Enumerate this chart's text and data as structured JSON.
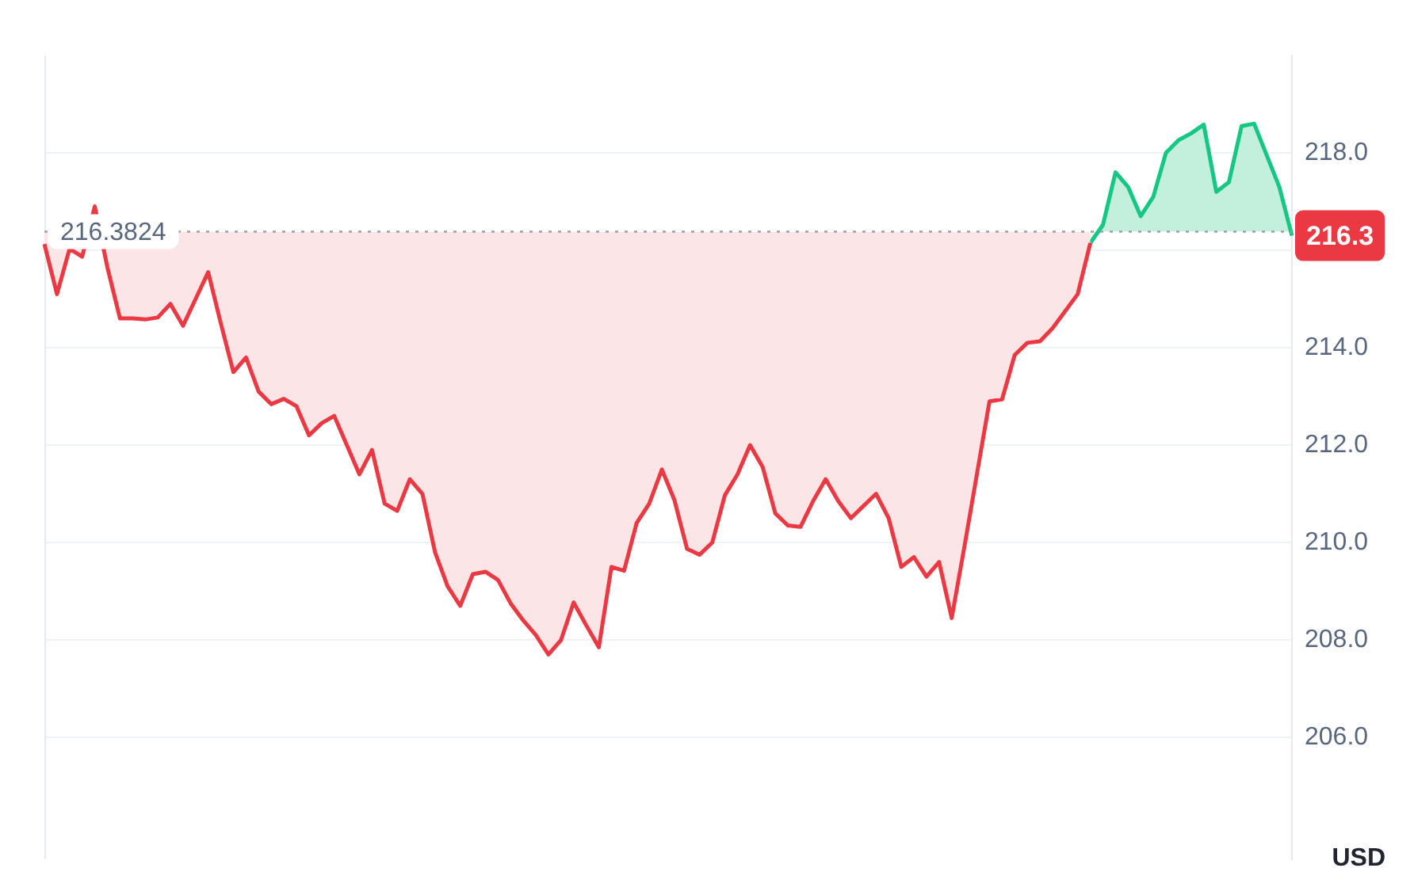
{
  "chart_data": {
    "type": "line",
    "categories": [
      null,
      null,
      null,
      null,
      null,
      null,
      null,
      null,
      null,
      null,
      null,
      null,
      null,
      null,
      null,
      null,
      null,
      null,
      null,
      null,
      null,
      null,
      null,
      null,
      null,
      null,
      null,
      null,
      null,
      null,
      null,
      null,
      null,
      null,
      null,
      null,
      null,
      null,
      null,
      null,
      null,
      null,
      null,
      null,
      null,
      null,
      null,
      null,
      null,
      null,
      null,
      null,
      null,
      null,
      null,
      null,
      null,
      null,
      null,
      null,
      null,
      null,
      null,
      null,
      null,
      null,
      null,
      null,
      null,
      null,
      null,
      null,
      null,
      null,
      null,
      null,
      null,
      null,
      null,
      null,
      null,
      null,
      null,
      null,
      null,
      null,
      null,
      null,
      null,
      null,
      null,
      null,
      null,
      null,
      null,
      null,
      null,
      null,
      null,
      null
    ],
    "series": [
      {
        "color": "#ea3943",
        "values": [
          216.13,
          215.1,
          216.03,
          215.87,
          216.9,
          215.65,
          214.6,
          214.6,
          214.58,
          214.62,
          214.9,
          214.45,
          215.0,
          215.55,
          214.5,
          213.5,
          213.8,
          213.1,
          212.84,
          212.95,
          212.8,
          212.2,
          212.45,
          212.6,
          212.0,
          211.4,
          211.9,
          210.8,
          210.65,
          211.3,
          211.0,
          209.8,
          209.1,
          208.7,
          209.35,
          209.4,
          209.23,
          208.75,
          208.4,
          208.1,
          207.7,
          208.0,
          208.77,
          208.3,
          207.85,
          209.5,
          209.42,
          210.4,
          210.8,
          211.5,
          210.87,
          209.87,
          209.75,
          210.0,
          210.97,
          211.4,
          212.0,
          211.55,
          210.6,
          210.35,
          210.32,
          210.85,
          211.3,
          210.85,
          210.5,
          210.75,
          211.0,
          210.5,
          209.5,
          209.7,
          209.3,
          209.6,
          208.45,
          209.9,
          211.4,
          212.9,
          212.94,
          213.85,
          214.1,
          214.13,
          214.4,
          214.75,
          215.1,
          216.15,
          null,
          null,
          null,
          null,
          null,
          null,
          null,
          null,
          null,
          null,
          null,
          null,
          null,
          null,
          null,
          null
        ]
      },
      {
        "color": "#16c784",
        "values": [
          null,
          null,
          null,
          null,
          null,
          null,
          null,
          null,
          null,
          null,
          null,
          null,
          null,
          null,
          null,
          null,
          null,
          null,
          null,
          null,
          null,
          null,
          null,
          null,
          null,
          null,
          null,
          null,
          null,
          null,
          null,
          null,
          null,
          null,
          null,
          null,
          null,
          null,
          null,
          null,
          null,
          null,
          null,
          null,
          null,
          null,
          null,
          null,
          null,
          null,
          null,
          null,
          null,
          null,
          null,
          null,
          null,
          null,
          null,
          null,
          null,
          null,
          null,
          null,
          null,
          null,
          null,
          null,
          null,
          null,
          null,
          null,
          null,
          null,
          null,
          null,
          null,
          null,
          null,
          null,
          null,
          null,
          null,
          216.15,
          216.52,
          217.6,
          217.3,
          216.7,
          217.1,
          218.0,
          218.26,
          218.4,
          218.58,
          217.2,
          217.4,
          218.55,
          218.6,
          217.95,
          217.3,
          216.3
        ],
        "value_labels": [
          null,
          null,
          null,
          null,
          null,
          null,
          null,
          null,
          null,
          null,
          null,
          null,
          null,
          null,
          null,
          null,
          null,
          null,
          null,
          null,
          null,
          null,
          null,
          null,
          null,
          null,
          null,
          null,
          null,
          null,
          null,
          null,
          null,
          null,
          null,
          null,
          null,
          null,
          null,
          null,
          null,
          null,
          null,
          null,
          null,
          null,
          null,
          null,
          null,
          null,
          null,
          null,
          null,
          null,
          null,
          null,
          null,
          null,
          null,
          null,
          null,
          null,
          null,
          null,
          null,
          null,
          null,
          null,
          null,
          null,
          null,
          null,
          null,
          null,
          null,
          null,
          null,
          null,
          null,
          null,
          null,
          null,
          null,
          null,
          null,
          null,
          null,
          null,
          null,
          null,
          null,
          null,
          null,
          null,
          null,
          null,
          null,
          null,
          null,
          "216.3"
        ]
      }
    ],
    "ylim": [
      203.5,
      220
    ],
    "yticks": [
      {
        "value": 206,
        "label": "206.0"
      },
      {
        "value": 208,
        "label": "208.0"
      },
      {
        "value": 210,
        "label": "210.0"
      },
      {
        "value": 212,
        "label": "212.0"
      },
      {
        "value": 214,
        "label": "214.0"
      },
      {
        "value": 216,
        "label": null
      },
      {
        "value": 218,
        "label": "218.0"
      }
    ],
    "grid": "y",
    "legend": false,
    "tick_labels": "y",
    "marker": "none",
    "ref_lines": [
      {
        "axis": "y",
        "value": 216.3824,
        "label": "216.3824",
        "color": "#9aa0a6",
        "line_style": "dotted"
      }
    ],
    "annotations": [
      "USD"
    ]
  }
}
